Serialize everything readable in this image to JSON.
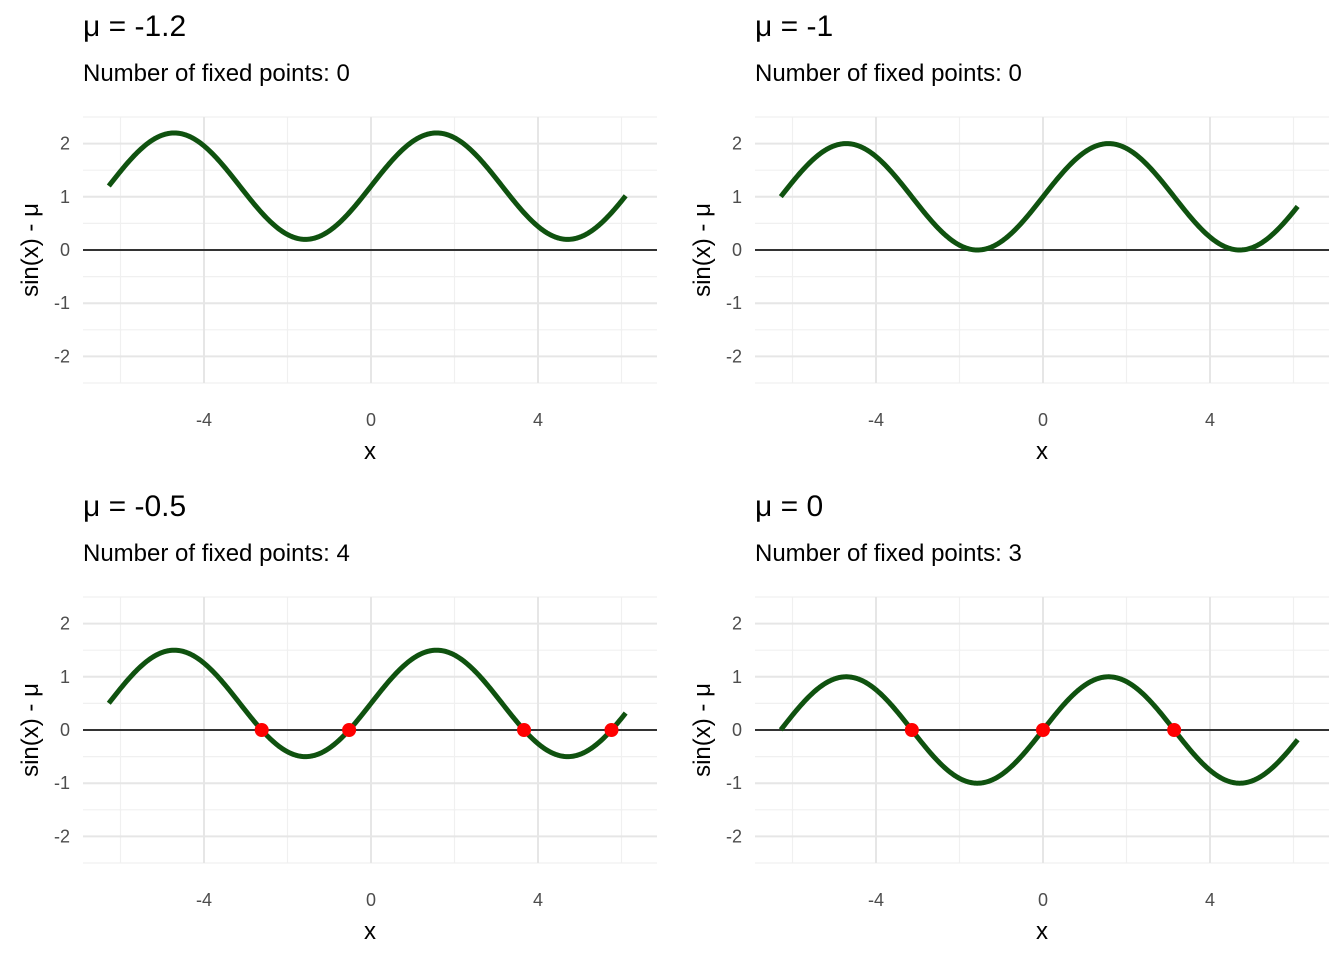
{
  "colors": {
    "curve": "#0f520f",
    "points": "#ff0000",
    "zero_line": "#333333",
    "grid_major": "#e6e6e6",
    "grid_minor": "#f0f0f0"
  },
  "chart_data": [
    {
      "type": "line",
      "title": "μ = -1.2",
      "subtitle": "Number of fixed points: 0",
      "mu": -1.2,
      "xlabel": "x",
      "ylabel": "sin(x) - μ",
      "xlim": [
        -6.28,
        6.28
      ],
      "ylim": [
        -2.5,
        2.5
      ],
      "xticks": [
        -4,
        0,
        4
      ],
      "yticks": [
        -2,
        -1,
        0,
        1,
        2
      ],
      "series": [
        {
          "function": "sin(x) - μ",
          "x_range": [
            -6.28,
            6.1
          ]
        }
      ],
      "fixed_points": []
    },
    {
      "type": "line",
      "title": "μ = -1",
      "subtitle": "Number of fixed points: 0",
      "mu": -1,
      "xlabel": "x",
      "ylabel": "sin(x) - μ",
      "xlim": [
        -6.28,
        6.28
      ],
      "ylim": [
        -2.5,
        2.5
      ],
      "xticks": [
        -4,
        0,
        4
      ],
      "yticks": [
        -2,
        -1,
        0,
        1,
        2
      ],
      "series": [
        {
          "function": "sin(x) - μ",
          "x_range": [
            -6.28,
            6.1
          ]
        }
      ],
      "fixed_points": []
    },
    {
      "type": "line",
      "title": "μ = -0.5",
      "subtitle": "Number of fixed points: 4",
      "mu": -0.5,
      "xlabel": "x",
      "ylabel": "sin(x) - μ",
      "xlim": [
        -6.28,
        6.28
      ],
      "ylim": [
        -2.5,
        2.5
      ],
      "xticks": [
        -4,
        0,
        4
      ],
      "yticks": [
        -2,
        -1,
        0,
        1,
        2
      ],
      "series": [
        {
          "function": "sin(x) - μ",
          "x_range": [
            -6.28,
            6.1
          ]
        }
      ],
      "fixed_points": [
        [
          -2.618,
          0
        ],
        [
          -0.524,
          0
        ],
        [
          3.665,
          0
        ],
        [
          5.76,
          0
        ]
      ]
    },
    {
      "type": "line",
      "title": "μ = 0",
      "subtitle": "Number of fixed points: 3",
      "mu": 0,
      "xlabel": "x",
      "ylabel": "sin(x) - μ",
      "xlim": [
        -6.28,
        6.28
      ],
      "ylim": [
        -2.5,
        2.5
      ],
      "xticks": [
        -4,
        0,
        4
      ],
      "yticks": [
        -2,
        -1,
        0,
        1,
        2
      ],
      "series": [
        {
          "function": "sin(x) - μ",
          "x_range": [
            -6.28,
            6.1
          ]
        }
      ],
      "fixed_points": [
        [
          -3.1416,
          0
        ],
        [
          0,
          0
        ],
        [
          3.1416,
          0
        ]
      ]
    }
  ]
}
